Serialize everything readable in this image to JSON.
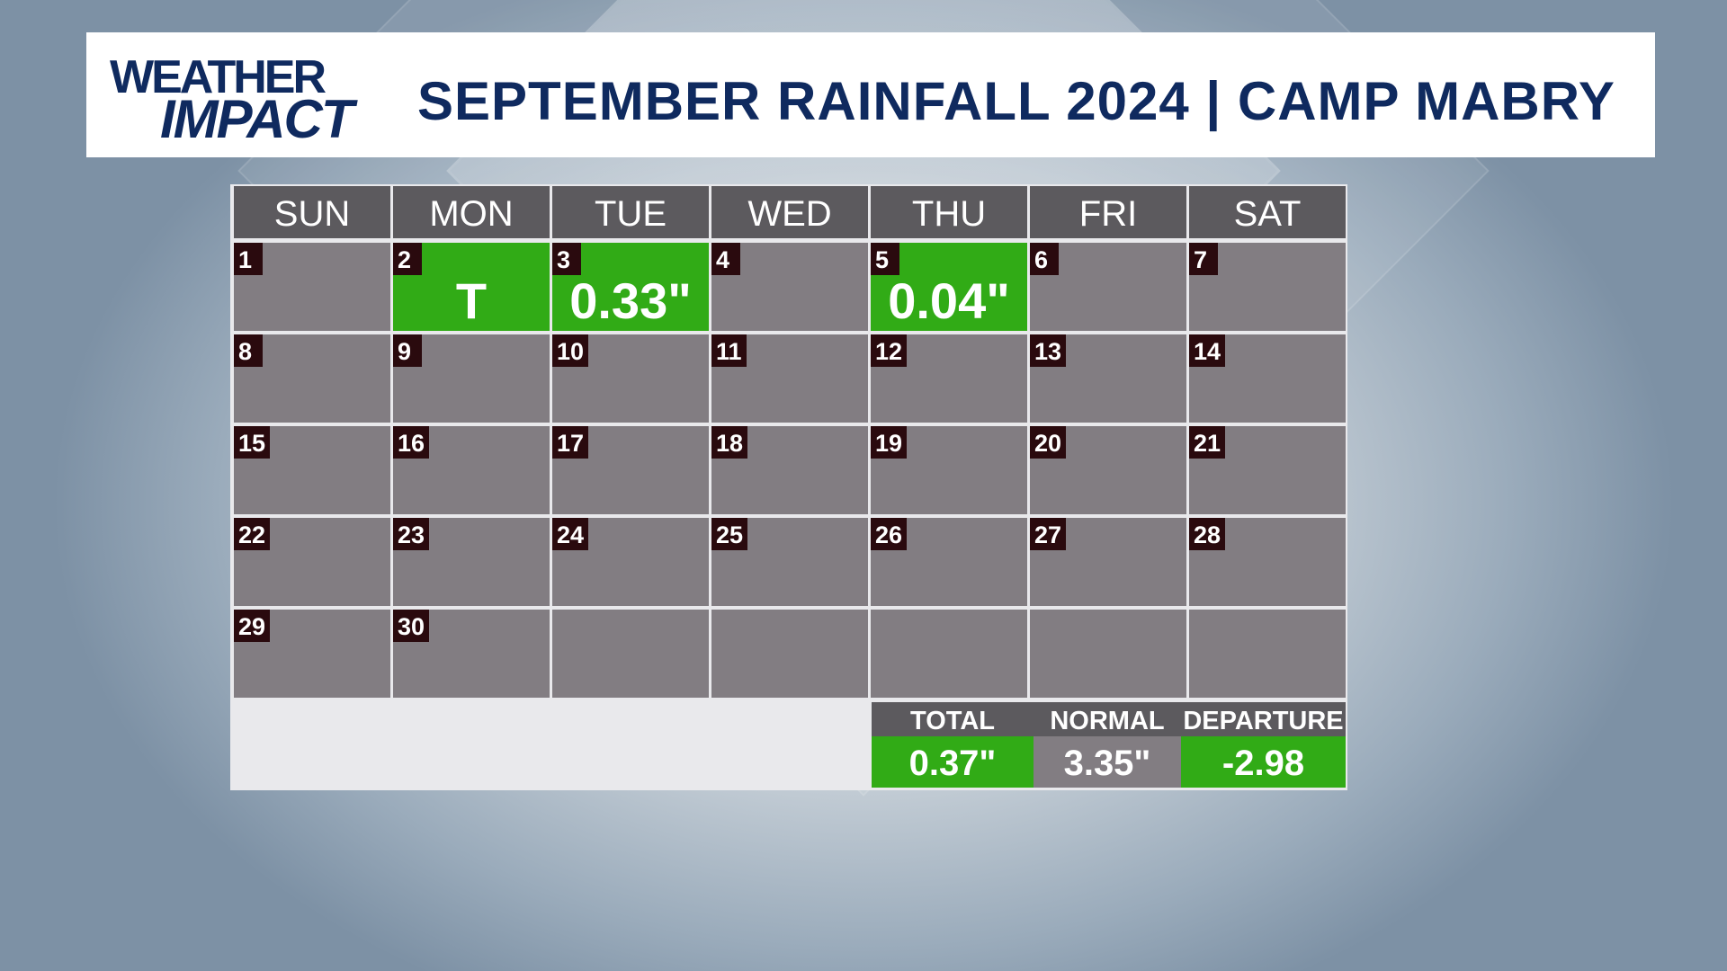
{
  "header": {
    "logo_line1": "WEATHER",
    "logo_line2": "IMPACT",
    "title": "SEPTEMBER RAINFALL 2024 | CAMP MABRY"
  },
  "weekdays": [
    "SUN",
    "MON",
    "TUE",
    "WED",
    "THU",
    "FRI",
    "SAT"
  ],
  "calendar": {
    "month": "September",
    "year": 2024,
    "first_weekday": "SUN",
    "days_in_month": 30,
    "rainfall": {
      "2": "T",
      "3": "0.33\"",
      "5": "0.04\""
    }
  },
  "summary": {
    "total_label": "TOTAL",
    "total_value": "0.37\"",
    "normal_label": "NORMAL",
    "normal_value": "3.35\"",
    "departure_label": "DEPARTURE",
    "departure_value": "-2.98"
  },
  "colors": {
    "brand_navy": "#0f2a5f",
    "rain_green": "#31ab16",
    "cell_gray": "#827d82",
    "header_gray": "#5c5a5e",
    "day_label_bg": "#2a0a0e"
  }
}
